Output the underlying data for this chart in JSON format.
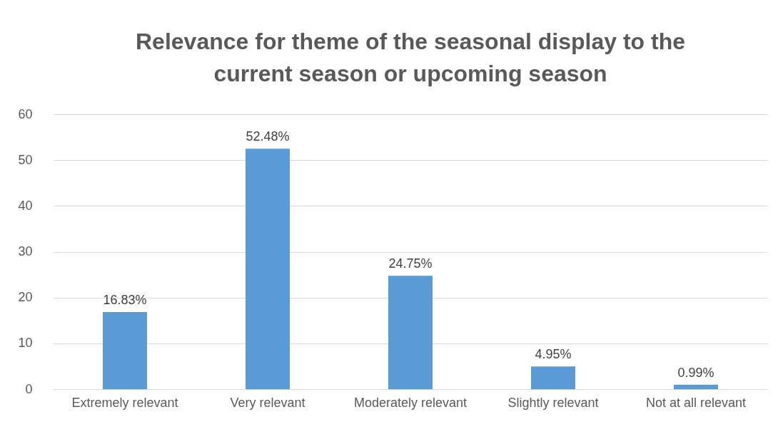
{
  "chart_data": {
    "type": "bar",
    "title": "Relevance for theme of the seasonal display to the current season or upcoming season",
    "categories": [
      "Extremely relevant",
      "Very relevant",
      "Moderately relevant",
      "Slightly relevant",
      "Not at all relevant"
    ],
    "values": [
      16.83,
      52.48,
      24.75,
      4.95,
      0.99
    ],
    "value_labels": [
      "16.83%",
      "52.48%",
      "24.75%",
      "4.95%",
      "0.99%"
    ],
    "color": "#5b9bd5",
    "ylim": [
      0,
      60
    ],
    "yticks": [
      0,
      10,
      20,
      30,
      40,
      50,
      60
    ],
    "grid": "y"
  }
}
